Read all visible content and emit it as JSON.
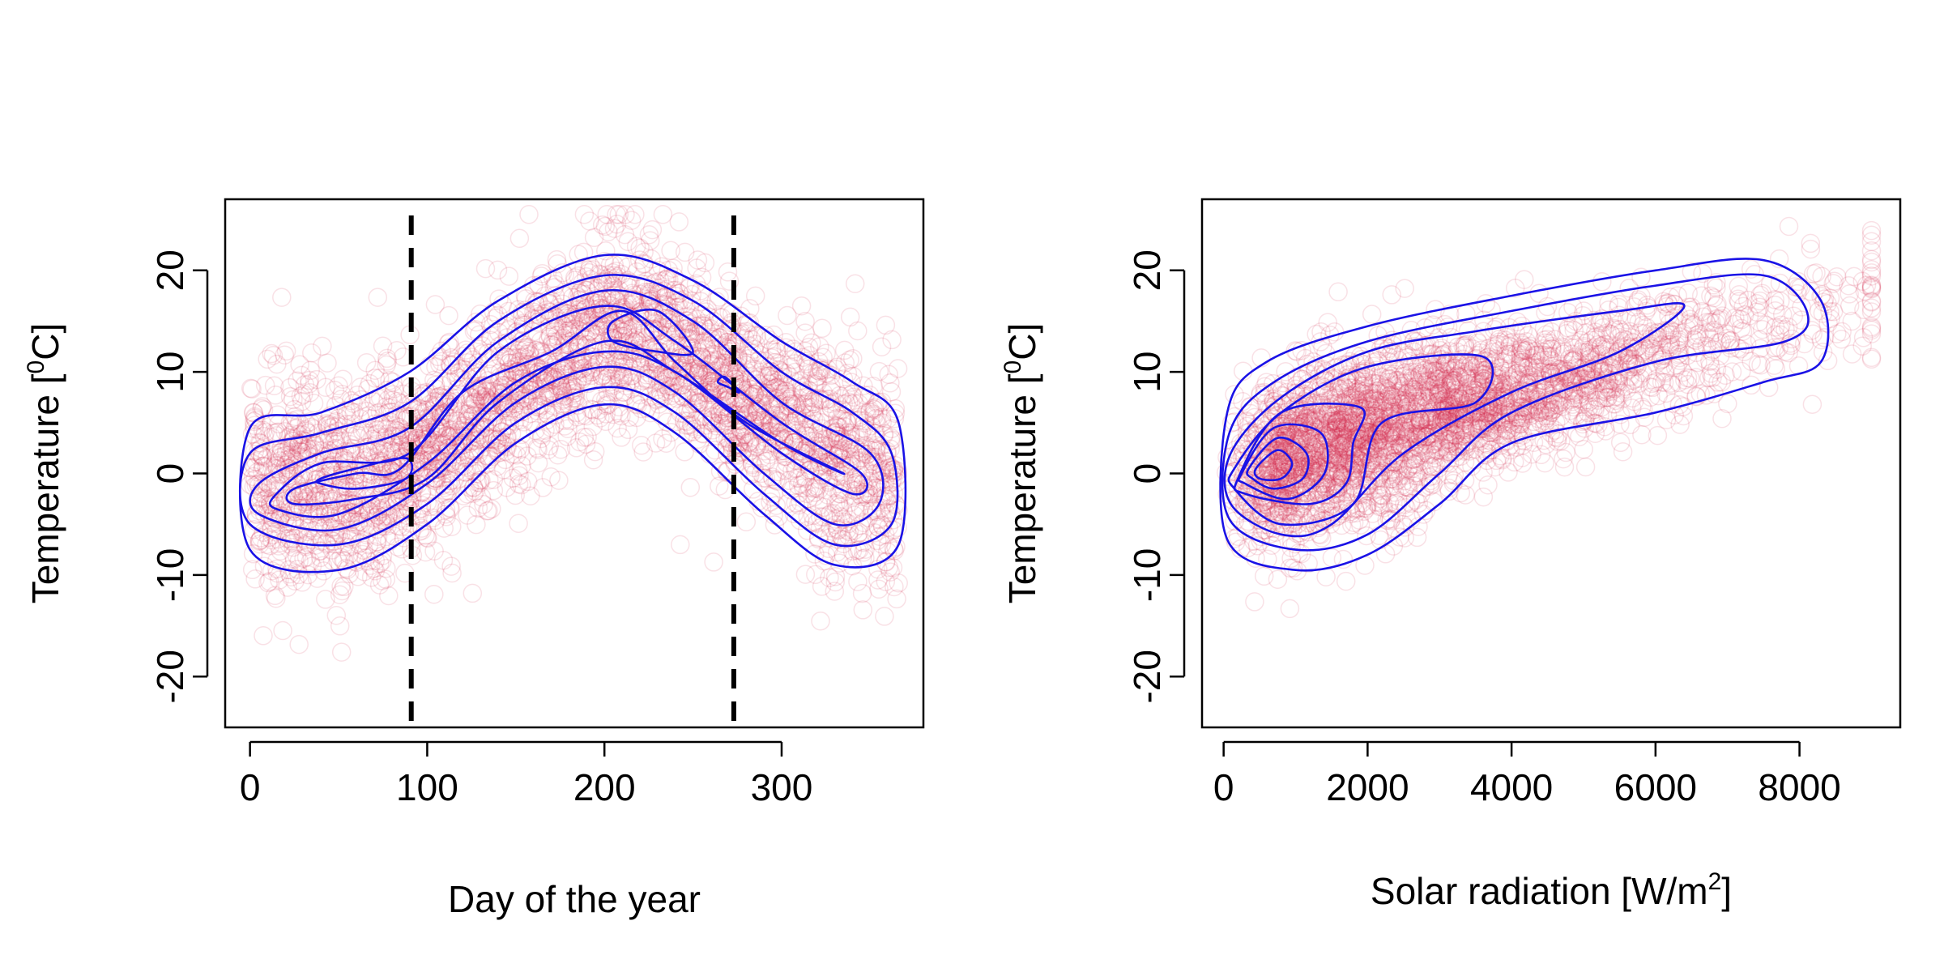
{
  "colors": {
    "points": "#d6294e",
    "contour": "#1a12e6",
    "frame": "#000000",
    "vline": "#000000"
  },
  "chart_data": [
    {
      "type": "scatter",
      "subtype": "scatter-with-density-contours",
      "title": "",
      "xlabel": "Day of the year",
      "ylabel_main": "Temperature [",
      "ylabel_sup": "0",
      "ylabel_tail": "C]",
      "xlim": [
        -14,
        380
      ],
      "ylim": [
        -25,
        27
      ],
      "x_ticks": [
        0,
        100,
        200,
        300
      ],
      "x_tick_labels": [
        "0",
        "100",
        "200",
        "300"
      ],
      "y_ticks": [
        -20,
        -10,
        0,
        10,
        20
      ],
      "y_tick_labels": [
        "-20",
        "-10",
        "0",
        "10",
        "20"
      ],
      "vertical_lines": [
        91,
        273
      ],
      "point_cloud": {
        "count": 3400,
        "x_range": [
          0,
          366
        ],
        "mean_curve": [
          [
            0,
            -1
          ],
          [
            50,
            -1.5
          ],
          [
            100,
            2
          ],
          [
            150,
            9
          ],
          [
            200,
            14
          ],
          [
            230,
            13.5
          ],
          [
            273,
            8
          ],
          [
            320,
            3
          ],
          [
            366,
            -1
          ]
        ],
        "spread": 4.5
      },
      "contour_levels": [
        [
          [
            0,
            4.5
          ],
          [
            40,
            6
          ],
          [
            90,
            10
          ],
          [
            140,
            17
          ],
          [
            200,
            21.5
          ],
          [
            250,
            19
          ],
          [
            300,
            13
          ],
          [
            340,
            9
          ],
          [
            366,
            5
          ],
          [
            366,
            -7
          ],
          [
            330,
            -9
          ],
          [
            290,
            -4
          ],
          [
            240,
            4
          ],
          [
            200,
            6.8
          ],
          [
            150,
            3
          ],
          [
            100,
            -5
          ],
          [
            50,
            -9.5
          ],
          [
            0,
            -7.5
          ]
        ],
        [
          [
            0,
            2
          ],
          [
            40,
            4
          ],
          [
            90,
            7
          ],
          [
            140,
            15
          ],
          [
            200,
            19.5
          ],
          [
            250,
            17
          ],
          [
            300,
            10
          ],
          [
            340,
            6
          ],
          [
            362,
            2
          ],
          [
            362,
            -5
          ],
          [
            330,
            -7
          ],
          [
            290,
            -2
          ],
          [
            240,
            6
          ],
          [
            200,
            8.5
          ],
          [
            150,
            5
          ],
          [
            100,
            -3
          ],
          [
            50,
            -7
          ],
          [
            0,
            -5
          ]
        ],
        [
          [
            5,
            -1
          ],
          [
            40,
            2
          ],
          [
            90,
            4.5
          ],
          [
            140,
            13
          ],
          [
            200,
            18
          ],
          [
            250,
            15
          ],
          [
            300,
            7
          ],
          [
            350,
            2
          ],
          [
            355,
            -3
          ],
          [
            330,
            -5
          ],
          [
            290,
            0
          ],
          [
            240,
            8
          ],
          [
            200,
            10.5
          ],
          [
            150,
            7
          ],
          [
            100,
            -1
          ],
          [
            50,
            -5.5
          ],
          [
            5,
            -4
          ]
        ],
        [
          [
            15,
            -2
          ],
          [
            40,
            1
          ],
          [
            90,
            2
          ],
          [
            140,
            12
          ],
          [
            200,
            16.5
          ],
          [
            240,
            13
          ],
          [
            300,
            5
          ],
          [
            345,
            0
          ],
          [
            340,
            -2
          ],
          [
            300,
            2
          ],
          [
            240,
            10
          ],
          [
            200,
            12
          ],
          [
            150,
            9
          ],
          [
            100,
            1
          ],
          [
            50,
            -4
          ],
          [
            15,
            -3.5
          ]
        ],
        [
          [
            25,
            -1.5
          ],
          [
            60,
            0
          ],
          [
            85,
            0.5
          ],
          [
            120,
            8
          ],
          [
            170,
            12
          ],
          [
            210,
            16
          ],
          [
            240,
            11
          ],
          [
            280,
            5
          ],
          [
            335,
            0
          ],
          [
            300,
            3
          ],
          [
            240,
            10
          ],
          [
            200,
            13
          ],
          [
            140,
            7
          ],
          [
            100,
            -0.5
          ],
          [
            60,
            -2.5
          ],
          [
            25,
            -3
          ]
        ],
        [
          [
            40,
            -0.5
          ],
          [
            60,
            0.5
          ],
          [
            88,
            1.5
          ],
          [
            88,
            -0.5
          ],
          [
            60,
            -1.5
          ],
          [
            40,
            -1
          ]
        ],
        [
          [
            205,
            15
          ],
          [
            230,
            16
          ],
          [
            250,
            12
          ],
          [
            230,
            12
          ],
          [
            205,
            13
          ]
        ],
        [
          [
            264,
            9
          ],
          [
            270,
            8.5
          ],
          [
            276,
            8
          ],
          [
            268,
            9.5
          ]
        ]
      ]
    },
    {
      "type": "scatter",
      "subtype": "scatter-with-density-contours",
      "title": "",
      "xlabel_main": "Solar radiation [W/m",
      "xlabel_sup": "2",
      "xlabel_tail": "]",
      "ylabel_main": "Temperature [",
      "ylabel_sup": "0",
      "ylabel_tail": "C]",
      "xlim": [
        -300,
        9400
      ],
      "ylim": [
        -25,
        27
      ],
      "x_ticks": [
        0,
        2000,
        4000,
        6000,
        8000
      ],
      "x_tick_labels": [
        "0",
        "2000",
        "4000",
        "6000",
        "8000"
      ],
      "y_ticks": [
        -20,
        -10,
        0,
        10,
        20
      ],
      "y_tick_labels": [
        "-20",
        "-10",
        "0",
        "10",
        "20"
      ],
      "point_cloud": {
        "count": 3400,
        "x_range": [
          0,
          9000
        ],
        "mean_curve": [
          [
            0,
            -1
          ],
          [
            1000,
            1
          ],
          [
            2000,
            4
          ],
          [
            4000,
            8
          ],
          [
            6000,
            12
          ],
          [
            8000,
            16
          ],
          [
            9000,
            17
          ]
        ],
        "spread": 4.0
      },
      "contour_levels": [
        [
          [
            50,
            6
          ],
          [
            600,
            11
          ],
          [
            2000,
            14.5
          ],
          [
            4000,
            17.5
          ],
          [
            6000,
            20
          ],
          [
            7500,
            21
          ],
          [
            8300,
            17
          ],
          [
            8300,
            11
          ],
          [
            7500,
            9
          ],
          [
            6000,
            6
          ],
          [
            4000,
            3
          ],
          [
            3000,
            -3
          ],
          [
            2000,
            -8
          ],
          [
            1000,
            -9.5
          ],
          [
            50,
            -6.5
          ]
        ],
        [
          [
            80,
            4
          ],
          [
            700,
            9
          ],
          [
            2000,
            13
          ],
          [
            4000,
            16
          ],
          [
            6000,
            18.5
          ],
          [
            7500,
            19.5
          ],
          [
            8100,
            16
          ],
          [
            7800,
            13
          ],
          [
            6000,
            11
          ],
          [
            4000,
            6
          ],
          [
            3000,
            0
          ],
          [
            2000,
            -6
          ],
          [
            1000,
            -7.5
          ],
          [
            80,
            -4.5
          ]
        ],
        [
          [
            100,
            2
          ],
          [
            800,
            7.5
          ],
          [
            2000,
            12
          ],
          [
            3500,
            14
          ],
          [
            5500,
            16
          ],
          [
            6400,
            16.5
          ],
          [
            5500,
            12
          ],
          [
            4000,
            8
          ],
          [
            2500,
            2
          ],
          [
            1500,
            -5
          ],
          [
            800,
            -6
          ],
          [
            100,
            -3
          ]
        ],
        [
          [
            150,
            0.5
          ],
          [
            800,
            6
          ],
          [
            2000,
            10.5
          ],
          [
            3600,
            11.5
          ],
          [
            3500,
            7
          ],
          [
            2200,
            5
          ],
          [
            1800,
            -3
          ],
          [
            800,
            -5
          ],
          [
            150,
            -1.5
          ]
        ],
        [
          [
            200,
            -0.5
          ],
          [
            800,
            6
          ],
          [
            1900,
            6.5
          ],
          [
            1800,
            3
          ],
          [
            1700,
            -1
          ],
          [
            1200,
            -3
          ],
          [
            300,
            -2
          ]
        ],
        [
          [
            250,
            0
          ],
          [
            700,
            4.5
          ],
          [
            1350,
            4
          ],
          [
            1400,
            0
          ],
          [
            900,
            -2.5
          ],
          [
            300,
            -1
          ]
        ],
        [
          [
            350,
            0.5
          ],
          [
            750,
            3.5
          ],
          [
            1150,
            2
          ],
          [
            1100,
            -0.5
          ],
          [
            700,
            -1.5
          ],
          [
            400,
            -0.5
          ]
        ],
        [
          [
            450,
            0.5
          ],
          [
            750,
            2.3
          ],
          [
            950,
            1
          ],
          [
            800,
            -0.5
          ],
          [
            500,
            -0.5
          ]
        ]
      ]
    }
  ]
}
